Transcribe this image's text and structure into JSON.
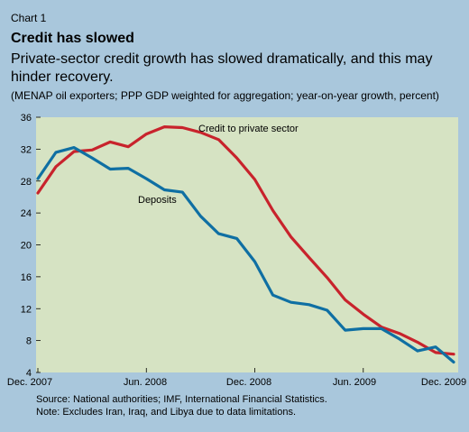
{
  "header": {
    "chart_number": "Chart 1",
    "title": "Credit has slowed",
    "subtitle": "Private-sector credit growth has slowed dramatically, and this may hinder recovery.",
    "note": "(MENAP oil exporters; PPP GDP weighted for aggregation; year-on-year growth, percent)"
  },
  "footer": {
    "source": "Source: National authorities; IMF, International Financial Statistics.",
    "note": "Note: Excludes Iran, Iraq, and Libya due to data limitations."
  },
  "colors": {
    "background": "#a9c7dc",
    "plot_area": "#d6e3c3",
    "credit": "#c8232c",
    "deposits": "#0f6fa3"
  },
  "chart_data": {
    "type": "line",
    "title": "Credit has slowed",
    "xlabel": "",
    "ylabel": "",
    "ylim": [
      4,
      36
    ],
    "yticks": [
      4,
      8,
      12,
      16,
      20,
      24,
      28,
      32,
      36
    ],
    "xticks": [
      "Dec. 2007",
      "Jun. 2008",
      "Dec. 2008",
      "Jun. 2009",
      "Dec. 2009"
    ],
    "x": [
      "Dec. 2007",
      "Jan. 2008",
      "Feb. 2008",
      "Mar. 2008",
      "Apr. 2008",
      "May. 2008",
      "Jun. 2008",
      "Jul. 2008",
      "Aug. 2008",
      "Sep. 2008",
      "Oct. 2008",
      "Nov. 2008",
      "Dec. 2008",
      "Jan. 2009",
      "Feb. 2009",
      "Mar. 2009",
      "Apr. 2009",
      "May. 2009",
      "Jun. 2009",
      "Jul. 2009",
      "Aug. 2009",
      "Sep. 2009",
      "Oct. 2009",
      "Nov. 2009"
    ],
    "grid": false,
    "series": [
      {
        "name": "Credit to private sector",
        "values": [
          26.5,
          29.8,
          31.7,
          31.9,
          32.9,
          32.3,
          33.9,
          34.8,
          34.7,
          34.1,
          33.2,
          30.9,
          28.2,
          24.3,
          21.0,
          18.4,
          15.9,
          13.1,
          11.3,
          9.7,
          8.9,
          7.8,
          6.5,
          6.3
        ]
      },
      {
        "name": "Deposits",
        "values": [
          28.3,
          31.6,
          32.2,
          30.9,
          29.5,
          29.6,
          28.3,
          26.9,
          26.6,
          23.6,
          21.4,
          20.8,
          17.9,
          13.7,
          12.8,
          12.5,
          11.8,
          9.3,
          9.5,
          9.5,
          8.2,
          6.7,
          7.2,
          5.3
        ]
      }
    ]
  }
}
